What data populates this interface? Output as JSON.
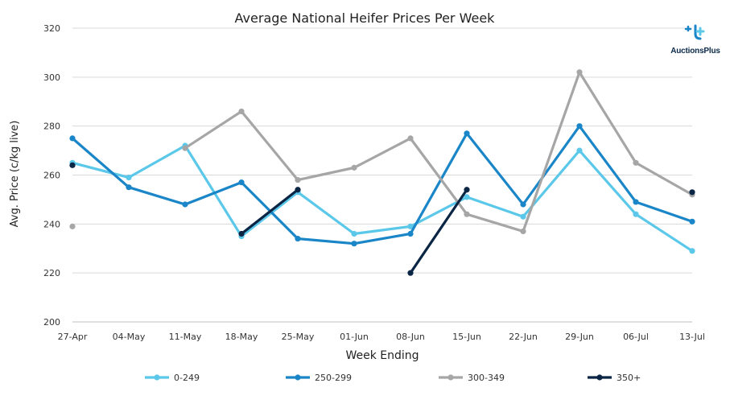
{
  "brand": {
    "name": "AuctionsPlus",
    "logo_icon": "auctionsplus-logo-icon"
  },
  "chart_data": {
    "type": "line",
    "title": "Average National Heifer Prices Per Week",
    "xlabel": "Week Ending",
    "ylabel": "Avg. Price (c/kg live)",
    "ylim": [
      200,
      320
    ],
    "yticks": [
      200,
      220,
      240,
      260,
      280,
      300,
      320
    ],
    "grid": true,
    "legend_position": "bottom",
    "categories": [
      "27-Apr",
      "04-May",
      "11-May",
      "18-May",
      "25-May",
      "01-Jun",
      "08-Jun",
      "15-Jun",
      "22-Jun",
      "29-Jun",
      "06-Jul",
      "13-Jul"
    ],
    "series": [
      {
        "name": "0-249",
        "color": "#5bc8ea",
        "values": [
          265,
          259,
          272,
          235,
          253,
          236,
          239,
          251,
          243,
          270,
          244,
          229
        ]
      },
      {
        "name": "250-299",
        "color": "#1a86c8",
        "values": [
          275,
          255,
          248,
          257,
          234,
          232,
          236,
          277,
          248,
          280,
          249,
          241
        ]
      },
      {
        "name": "300-349",
        "color": "#a6a6a6",
        "values": [
          239,
          null,
          271,
          286,
          258,
          263,
          275,
          244,
          237,
          302,
          265,
          252
        ]
      },
      {
        "name": "350+",
        "color": "#0b2545",
        "values": [
          264,
          null,
          null,
          236,
          254,
          null,
          220,
          254,
          null,
          null,
          null,
          253
        ]
      }
    ]
  }
}
